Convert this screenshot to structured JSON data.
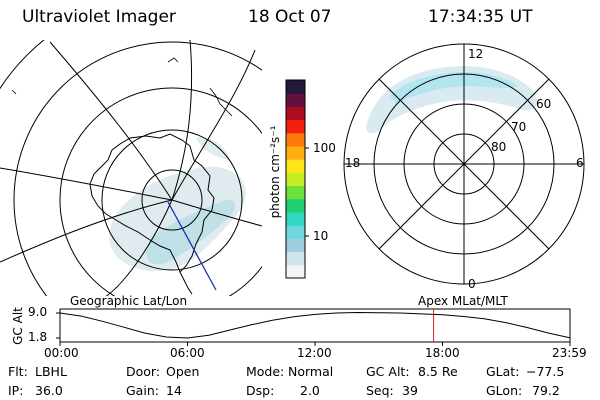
{
  "header": {
    "instrument": "Ultraviolet Imager",
    "date": "18 Oct 07",
    "time": "17:34:35 UT"
  },
  "colorbar": {
    "unit_label": "photon cm⁻²s⁻¹",
    "ticks": [
      "100",
      "10"
    ],
    "colors": [
      "#f4f4f4",
      "#d0e4ec",
      "#9ecfe0",
      "#6fd6e0",
      "#30d8c4",
      "#20d070",
      "#6ce23a",
      "#c4ee26",
      "#ffe41a",
      "#ffae14",
      "#ff7a0c",
      "#f22010",
      "#b00c20",
      "#62103e",
      "#22183a"
    ]
  },
  "left_map": {
    "label": "Geographic Lat/Lon"
  },
  "right_map": {
    "label": "Apex MLat/MLT",
    "mlt_labels": {
      "top": "12",
      "left": "18",
      "right": "6",
      "bottom": "0"
    },
    "lat_labels": [
      "60",
      "70",
      "80"
    ]
  },
  "altitude_plot": {
    "y_label": "GC Alt",
    "y_ticks": [
      "9.0",
      "1.8"
    ],
    "x_ticks": [
      "00:00",
      "06:00",
      "12:00",
      "18:00",
      "23:59"
    ],
    "series": [
      [
        0,
        9.0
      ],
      [
        1,
        8.1
      ],
      [
        2,
        6.6
      ],
      [
        3,
        4.9
      ],
      [
        4,
        3.2
      ],
      [
        5,
        2.1
      ],
      [
        6,
        1.8
      ],
      [
        7,
        2.6
      ],
      [
        8,
        4.1
      ],
      [
        9,
        5.6
      ],
      [
        10,
        6.9
      ],
      [
        11,
        7.9
      ],
      [
        12,
        8.6
      ],
      [
        13,
        9.0
      ],
      [
        14,
        9.15
      ],
      [
        15,
        9.1
      ],
      [
        16,
        9.0
      ],
      [
        17,
        8.75
      ],
      [
        18,
        8.5
      ],
      [
        19,
        8.0
      ],
      [
        20,
        7.3
      ],
      [
        21,
        6.2
      ],
      [
        22,
        4.8
      ],
      [
        23,
        3.2
      ],
      [
        23.98,
        1.9
      ]
    ],
    "current_time_hours": 17.58
  },
  "info": {
    "filter_label": "Flt:",
    "filter_value": "LBHL",
    "ip_label": "IP:",
    "ip_value": "36.0",
    "door_label": "Door:",
    "door_value": "Open",
    "gain_label": "Gain:",
    "gain_value": "14",
    "mode_label": "Mode:",
    "mode_value": "Normal",
    "dsp_label": "Dsp:",
    "dsp_value": "2.0",
    "gcalt_label": "GC Alt:",
    "gcalt_value": "8.5 Re",
    "seq_label": "Seq:",
    "seq_value": "39",
    "glat_label": "GLat:",
    "glat_value": "−77.5",
    "glon_label": "GLon:",
    "glon_value": "79.2"
  }
}
